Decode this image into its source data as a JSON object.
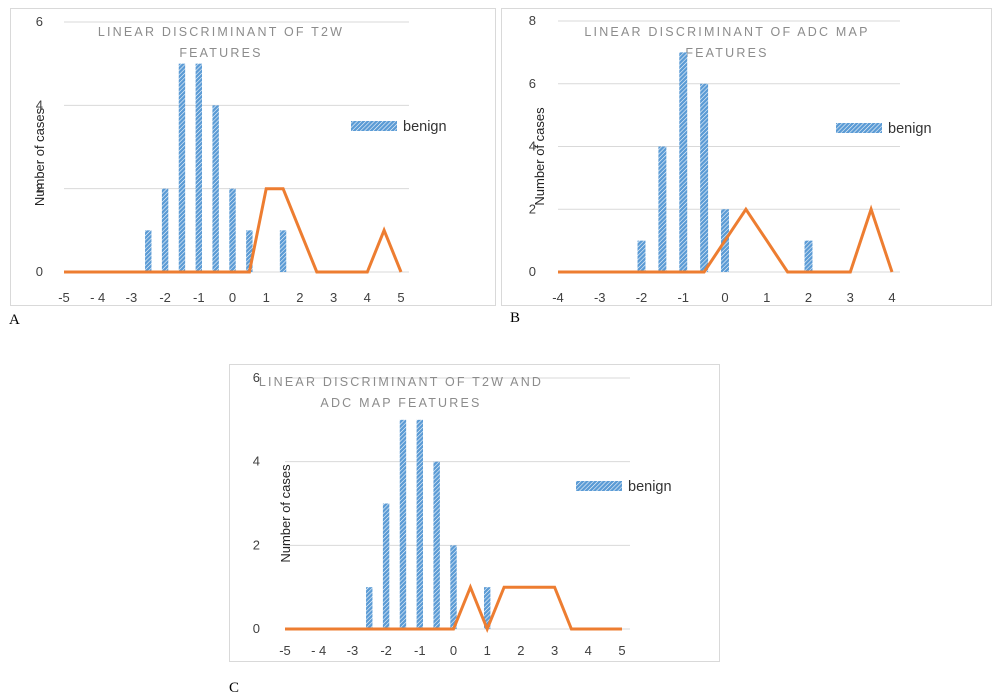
{
  "colors": {
    "bar": "#5b9bd5",
    "line": "#ed7d31",
    "grid": "#d9d9d9"
  },
  "chart_data": [
    {
      "panel": "A",
      "type": "bar",
      "title_lines": [
        "LINEAR DISCRIMINANT OF T2W",
        "FEATURES"
      ],
      "ylabel": "Number of cases",
      "ylim": [
        0,
        6
      ],
      "yticks": [
        0,
        2,
        4,
        6
      ],
      "xlim": [
        -5,
        5
      ],
      "xticks": [
        -5,
        -4,
        -3,
        -2,
        -1,
        0,
        1,
        2,
        3,
        4,
        5
      ],
      "xtick_labels": [
        "-5",
        "- 4",
        "-3",
        "-2",
        "-1",
        "0",
        "1",
        "2",
        "3",
        "4",
        "5"
      ],
      "grid": true,
      "legend_position": "right",
      "series": [
        {
          "name": "benign",
          "kind": "bar",
          "x": [
            -2.5,
            -2,
            -1.5,
            -1,
            -0.5,
            0,
            0.5,
            1.5
          ],
          "values": [
            1,
            2,
            5,
            5,
            4,
            2,
            1,
            1
          ]
        },
        {
          "kind": "line",
          "x": [
            -5,
            -4.5,
            -4,
            -3.5,
            -3,
            -2.5,
            -2,
            -1.5,
            -1,
            -0.5,
            0,
            0.5,
            1,
            1.5,
            2,
            2.5,
            3,
            3.5,
            4,
            4.5,
            5
          ],
          "values": [
            0,
            0,
            0,
            0,
            0,
            0,
            0,
            0,
            0,
            0,
            0,
            0,
            2,
            2,
            1,
            0,
            0,
            0,
            0,
            1,
            0
          ]
        }
      ]
    },
    {
      "panel": "B",
      "type": "bar",
      "title_lines": [
        "LINEAR DISCRIMINANT OF ADC MAP",
        "FEATURES"
      ],
      "ylabel": "Number of cases",
      "ylim": [
        0,
        8
      ],
      "yticks": [
        0,
        2,
        4,
        6,
        8
      ],
      "xlim": [
        -4,
        4
      ],
      "xticks": [
        -4,
        -3,
        -2,
        -1,
        0,
        1,
        2,
        3,
        4
      ],
      "xtick_labels": [
        "-4",
        "-3",
        "-2",
        "-1",
        "0",
        "1",
        "2",
        "3",
        "4"
      ],
      "grid": true,
      "legend_position": "right",
      "series": [
        {
          "name": "benign",
          "kind": "bar",
          "x": [
            -2,
            -1.5,
            -1,
            -0.5,
            0,
            2
          ],
          "values": [
            1,
            4,
            7,
            6,
            2,
            1
          ]
        },
        {
          "kind": "line",
          "x": [
            -4,
            -3.5,
            -3,
            -2.5,
            -2,
            -1.5,
            -1,
            -0.5,
            0,
            0.5,
            1,
            1.5,
            2,
            2.5,
            3,
            3.5,
            4
          ],
          "values": [
            0,
            0,
            0,
            0,
            0,
            0,
            0,
            0,
            1,
            2,
            1,
            0,
            0,
            0,
            0,
            2,
            0
          ]
        }
      ]
    },
    {
      "panel": "C",
      "type": "bar",
      "title_lines": [
        "LINEAR DISCRIMINANT OF T2W AND",
        "ADC MAP FEATURES"
      ],
      "ylabel": "Number of cases",
      "ylim": [
        0,
        6
      ],
      "yticks": [
        0,
        2,
        4,
        6
      ],
      "xlim": [
        -5,
        5
      ],
      "xticks": [
        -5,
        -4,
        -3,
        -2,
        -1,
        0,
        1,
        2,
        3,
        4,
        5
      ],
      "xtick_labels": [
        "-5",
        "- 4",
        "-3",
        "-2",
        "-1",
        "0",
        "1",
        "2",
        "3",
        "4",
        "5"
      ],
      "grid": true,
      "legend_position": "right",
      "series": [
        {
          "name": "benign",
          "kind": "bar",
          "x": [
            -2.5,
            -2,
            -1.5,
            -1,
            -0.5,
            0,
            1
          ],
          "values": [
            1,
            3,
            5,
            5,
            4,
            2,
            1
          ]
        },
        {
          "kind": "line",
          "x": [
            -5,
            -4.5,
            -4,
            -3.5,
            -3,
            -2.5,
            -2,
            -1.5,
            -1,
            -0.5,
            0,
            0.5,
            1,
            1.5,
            2,
            2.5,
            3,
            3.5,
            4,
            4.5,
            5
          ],
          "values": [
            0,
            0,
            0,
            0,
            0,
            0,
            0,
            0,
            0,
            0,
            0,
            1,
            0,
            1,
            1,
            1,
            1,
            0,
            0,
            0,
            0
          ]
        }
      ]
    }
  ],
  "labels": {
    "a": "A",
    "b": "B",
    "c": "C"
  }
}
